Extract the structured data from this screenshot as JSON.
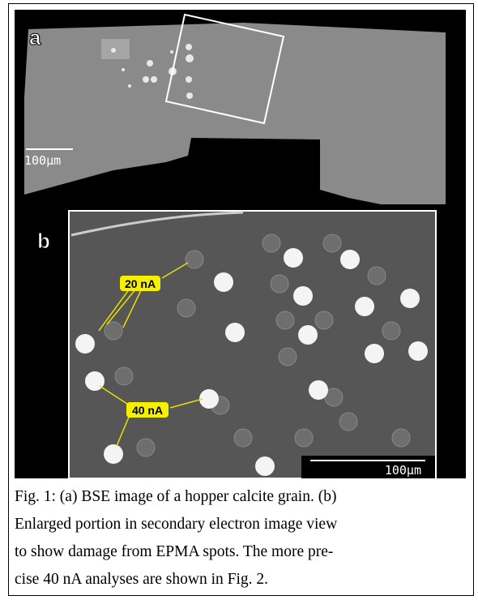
{
  "figure": {
    "panels": [
      {
        "label": "a",
        "scale_bar": "100µm"
      },
      {
        "label": "b",
        "annotations": [
          "20 nA",
          "40 nA"
        ],
        "scale_bar": "100µm"
      }
    ]
  },
  "caption": {
    "lines": [
      "Fig. 1: (a) BSE image of a hopper calcite grain. (b)",
      "Enlarged portion in secondary electron image view",
      "to show damage from EPMA spots. The more pre-",
      "cise 40 nA analyses are shown in Fig. 2."
    ]
  }
}
